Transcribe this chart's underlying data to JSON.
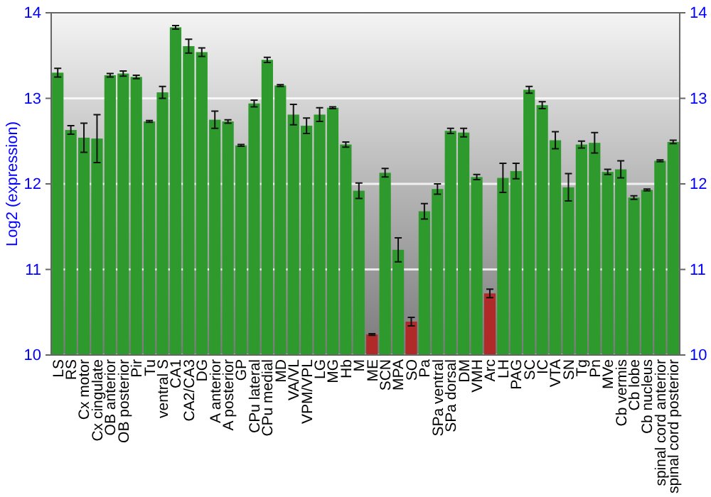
{
  "chart_data": {
    "type": "bar",
    "ylabel": "Log2 (expression)",
    "categories": [
      "LS",
      "RS",
      "Cx motor",
      "Cx cingulate",
      "OB anterior",
      "OB posterior",
      "Pir",
      "Tu",
      "ventral S",
      "CA1",
      "CA2/CA3",
      "DG",
      "A anterior",
      "A posterior",
      "GP",
      "CPu lateral",
      "CPu medial",
      "MD",
      "VA/VL",
      "VPM/VPL",
      "LG",
      "MG",
      "Hb",
      "M",
      "ME",
      "SCN",
      "MPA",
      "SO",
      "Pa",
      "SPa ventral",
      "SPa dorsal",
      "DM",
      "VMH",
      "Arc",
      "LH",
      "PAG",
      "SC",
      "IC",
      "VTA",
      "SN",
      "Tg",
      "Pn",
      "MVe",
      "Cb vermis",
      "Cb lobe",
      "Cb nucleus",
      "spinal cord anterior",
      "spinal cord posterior"
    ],
    "values": [
      13.3,
      12.63,
      12.54,
      12.53,
      13.27,
      13.29,
      13.25,
      12.73,
      13.07,
      13.83,
      13.61,
      13.54,
      12.75,
      12.73,
      12.45,
      12.94,
      13.45,
      13.15,
      12.81,
      12.68,
      12.81,
      12.89,
      12.46,
      11.92,
      10.24,
      12.13,
      11.23,
      10.39,
      11.68,
      11.94,
      12.62,
      12.6,
      12.08,
      10.72,
      12.07,
      12.15,
      13.1,
      12.92,
      12.51,
      11.96,
      12.46,
      12.48,
      12.14,
      12.17,
      11.84,
      11.93,
      12.27,
      12.49
    ],
    "errors": [
      0.05,
      0.05,
      0.17,
      0.28,
      0.02,
      0.03,
      0.02,
      0.01,
      0.07,
      0.02,
      0.08,
      0.05,
      0.1,
      0.02,
      0.01,
      0.04,
      0.03,
      0.01,
      0.12,
      0.09,
      0.08,
      0.01,
      0.03,
      0.09,
      0.01,
      0.05,
      0.14,
      0.05,
      0.09,
      0.06,
      0.03,
      0.05,
      0.03,
      0.05,
      0.17,
      0.09,
      0.04,
      0.04,
      0.1,
      0.16,
      0.04,
      0.12,
      0.03,
      0.1,
      0.02,
      0.01,
      0.01,
      0.02
    ],
    "colors": [
      "#2e9a2e",
      "#2e9a2e",
      "#2e9a2e",
      "#2e9a2e",
      "#2e9a2e",
      "#2e9a2e",
      "#2e9a2e",
      "#2e9a2e",
      "#2e9a2e",
      "#2e9a2e",
      "#2e9a2e",
      "#2e9a2e",
      "#2e9a2e",
      "#2e9a2e",
      "#2e9a2e",
      "#2e9a2e",
      "#2e9a2e",
      "#2e9a2e",
      "#2e9a2e",
      "#2e9a2e",
      "#2e9a2e",
      "#2e9a2e",
      "#2e9a2e",
      "#2e9a2e",
      "#b02a2a",
      "#2e9a2e",
      "#2e9a2e",
      "#b02a2a",
      "#2e9a2e",
      "#2e9a2e",
      "#2e9a2e",
      "#2e9a2e",
      "#2e9a2e",
      "#b02a2a",
      "#2e9a2e",
      "#2e9a2e",
      "#2e9a2e",
      "#2e9a2e",
      "#2e9a2e",
      "#2e9a2e",
      "#2e9a2e",
      "#2e9a2e",
      "#2e9a2e",
      "#2e9a2e",
      "#2e9a2e",
      "#2e9a2e",
      "#2e9a2e",
      "#2e9a2e"
    ],
    "ylim": [
      10,
      14
    ],
    "yticks": [
      10,
      11,
      12,
      13,
      14
    ],
    "y2lim": [
      10,
      14
    ],
    "y2ticks": [
      10,
      11,
      12,
      13,
      14
    ],
    "grid": "y"
  }
}
